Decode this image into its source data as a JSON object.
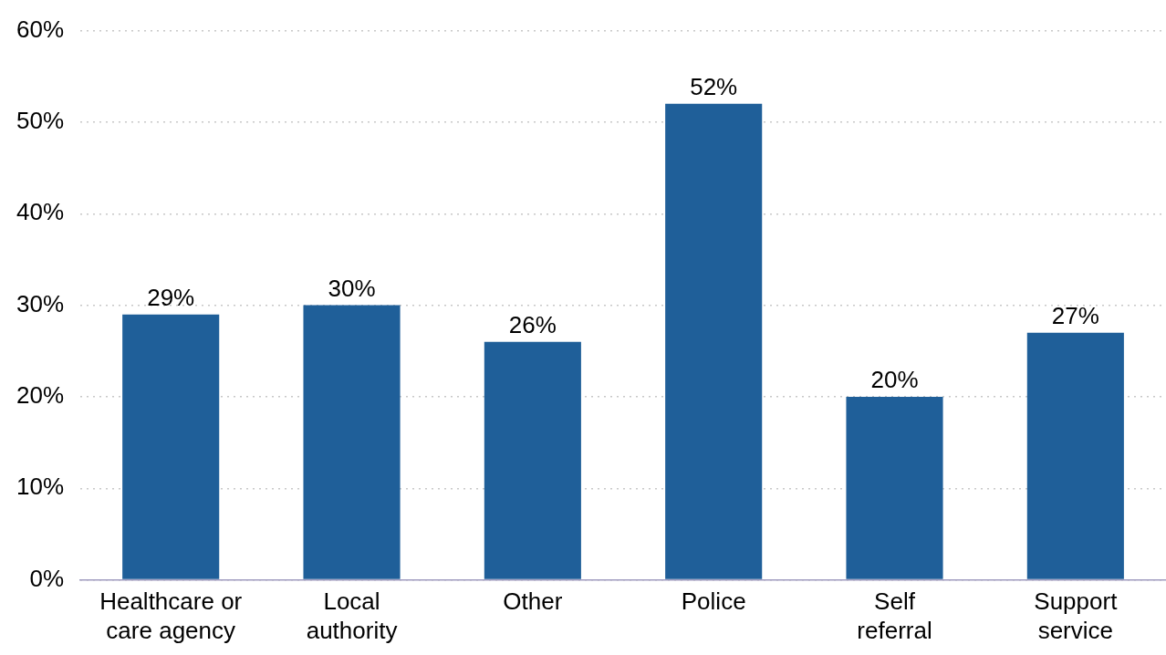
{
  "chart_data": {
    "type": "bar",
    "categories": [
      "Healthcare or care agency",
      "Local authority",
      "Other",
      "Police",
      "Self referral",
      "Support service"
    ],
    "values": [
      29,
      30,
      26,
      52,
      20,
      27
    ],
    "color": "#1f5f99",
    "value_labels": [
      "29%",
      "30%",
      "26%",
      "52%",
      "20%",
      "27%"
    ],
    "ylim": [
      0,
      60
    ],
    "yticks": [
      {
        "value": 0,
        "label": "0%"
      },
      {
        "value": 10,
        "label": "10%"
      },
      {
        "value": 20,
        "label": "20%"
      },
      {
        "value": 30,
        "label": "30%"
      },
      {
        "value": 40,
        "label": "40%"
      },
      {
        "value": 50,
        "label": "50%"
      },
      {
        "value": 60,
        "label": "60%"
      }
    ],
    "grid": "y",
    "legend": false
  }
}
